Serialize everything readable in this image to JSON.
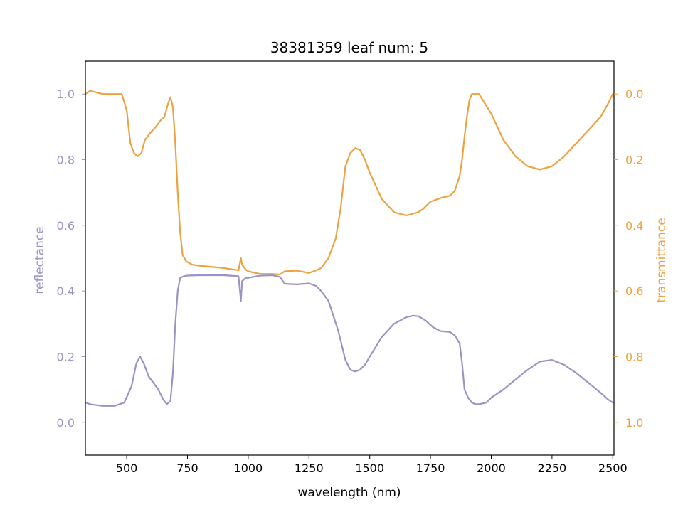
{
  "chart_data": {
    "type": "line",
    "title": "38381359 leaf num: 5",
    "xlabel": "wavelength (nm)",
    "ylabel_left": "reflectance",
    "ylabel_right": "transmittance",
    "xlim": [
      330,
      2505
    ],
    "ylim_left": [
      -0.1,
      1.1
    ],
    "ylim_right": [
      1.1,
      -0.1
    ],
    "right_axis_inverted": true,
    "x_ticks": [
      500,
      750,
      1000,
      1250,
      1500,
      1750,
      2000,
      2250,
      2500
    ],
    "y_left_ticks": [
      0.0,
      0.2,
      0.4,
      0.6,
      0.8,
      1.0
    ],
    "y_right_ticks": [
      0.0,
      0.2,
      0.4,
      0.6,
      0.8,
      1.0
    ],
    "grid": false,
    "colors": {
      "reflectance": "#9a93c6",
      "transmittance": "#eda23f",
      "axis": "#000000"
    },
    "series": [
      {
        "name": "reflectance",
        "axis": "left",
        "x": [
          330,
          350,
          400,
          450,
          490,
          520,
          540,
          555,
          570,
          590,
          610,
          630,
          650,
          665,
          680,
          690,
          700,
          710,
          720,
          735,
          750,
          800,
          900,
          960,
          970,
          975,
          990,
          1000,
          1050,
          1100,
          1130,
          1150,
          1200,
          1250,
          1280,
          1300,
          1330,
          1370,
          1400,
          1420,
          1440,
          1460,
          1480,
          1500,
          1550,
          1600,
          1650,
          1680,
          1700,
          1730,
          1760,
          1790,
          1830,
          1850,
          1870,
          1880,
          1890,
          1905,
          1920,
          1935,
          1950,
          1980,
          2000,
          2050,
          2100,
          2150,
          2200,
          2250,
          2300,
          2350,
          2400,
          2450,
          2480,
          2500
        ],
        "values": [
          0.06,
          0.055,
          0.05,
          0.05,
          0.06,
          0.11,
          0.18,
          0.2,
          0.18,
          0.14,
          0.12,
          0.1,
          0.07,
          0.055,
          0.065,
          0.15,
          0.3,
          0.4,
          0.44,
          0.445,
          0.447,
          0.448,
          0.448,
          0.445,
          0.37,
          0.43,
          0.44,
          0.44,
          0.447,
          0.448,
          0.443,
          0.422,
          0.42,
          0.423,
          0.415,
          0.4,
          0.37,
          0.28,
          0.19,
          0.16,
          0.155,
          0.16,
          0.175,
          0.2,
          0.26,
          0.3,
          0.32,
          0.325,
          0.323,
          0.31,
          0.29,
          0.278,
          0.275,
          0.265,
          0.24,
          0.18,
          0.1,
          0.075,
          0.06,
          0.055,
          0.055,
          0.06,
          0.075,
          0.1,
          0.13,
          0.16,
          0.185,
          0.19,
          0.175,
          0.15,
          0.12,
          0.09,
          0.07,
          0.06
        ]
      },
      {
        "name": "transmittance",
        "axis": "right",
        "x": [
          330,
          350,
          400,
          450,
          480,
          500,
          515,
          530,
          545,
          560,
          575,
          595,
          620,
          640,
          655,
          670,
          680,
          690,
          700,
          710,
          720,
          730,
          745,
          770,
          800,
          900,
          960,
          970,
          975,
          990,
          1000,
          1050,
          1100,
          1130,
          1150,
          1200,
          1250,
          1280,
          1300,
          1330,
          1360,
          1380,
          1400,
          1420,
          1440,
          1460,
          1480,
          1500,
          1550,
          1600,
          1650,
          1700,
          1720,
          1750,
          1780,
          1800,
          1830,
          1850,
          1870,
          1880,
          1890,
          1900,
          1910,
          1920,
          1950,
          2000,
          2050,
          2100,
          2150,
          2200,
          2250,
          2300,
          2350,
          2400,
          2450,
          2480,
          2500
        ],
        "values": [
          0.0,
          -0.01,
          0.0,
          0.0,
          0.0,
          0.05,
          0.15,
          0.18,
          0.19,
          0.18,
          0.14,
          0.12,
          0.1,
          0.08,
          0.07,
          0.03,
          0.01,
          0.04,
          0.15,
          0.3,
          0.42,
          0.49,
          0.51,
          0.52,
          0.523,
          0.53,
          0.537,
          0.5,
          0.52,
          0.535,
          0.54,
          0.548,
          0.548,
          0.55,
          0.54,
          0.538,
          0.545,
          0.537,
          0.53,
          0.5,
          0.44,
          0.35,
          0.22,
          0.18,
          0.165,
          0.17,
          0.2,
          0.24,
          0.32,
          0.36,
          0.37,
          0.36,
          0.35,
          0.328,
          0.32,
          0.315,
          0.31,
          0.295,
          0.25,
          0.2,
          0.13,
          0.07,
          0.02,
          0.0,
          0.0,
          0.06,
          0.14,
          0.19,
          0.22,
          0.23,
          0.22,
          0.19,
          0.15,
          0.11,
          0.07,
          0.03,
          0.0
        ]
      }
    ]
  }
}
